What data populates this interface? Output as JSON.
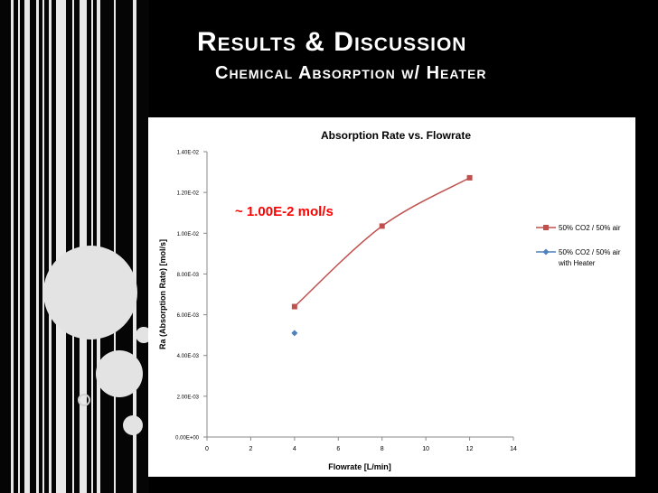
{
  "slide": {
    "title": "Results & Discussion",
    "subtitle": "Chemical Absorption w/ Heater"
  },
  "chart_data": {
    "type": "scatter",
    "title": "Absorption Rate vs. Flowrate",
    "xlabel": "Flowrate [L/min]",
    "ylabel": "Ra (Absorption Rate) [mol/s]",
    "xlim": [
      0,
      14
    ],
    "ylim": [
      0,
      0.014
    ],
    "x_ticks": [
      "0",
      "2",
      "4",
      "6",
      "8",
      "10",
      "12",
      "14"
    ],
    "y_ticks": [
      "0.00E+00",
      "2.00E-03",
      "4.00E-03",
      "6.00E-03",
      "8.00E-03",
      "1.00E-02",
      "1.20E-02",
      "1.40E-02"
    ],
    "grid": false,
    "legend_position": "right",
    "series": [
      {
        "name": "50% CO2 / 50% air",
        "color": "#c0504d",
        "marker": "square",
        "line": "smooth",
        "x": [
          4,
          8,
          12
        ],
        "y": [
          0.0064,
          0.01035,
          0.01272
        ]
      },
      {
        "name": "50% CO2 / 50% air with Heater",
        "legend_lines": [
          "50% CO2 / 50% air",
          "with Heater"
        ],
        "color": "#4f81bd",
        "marker": "diamond",
        "line": "none",
        "x": [
          4
        ],
        "y": [
          0.0051
        ]
      }
    ],
    "annotation": "~ 1.00E-2 mol/s",
    "annotation_color": "#ff0000"
  }
}
